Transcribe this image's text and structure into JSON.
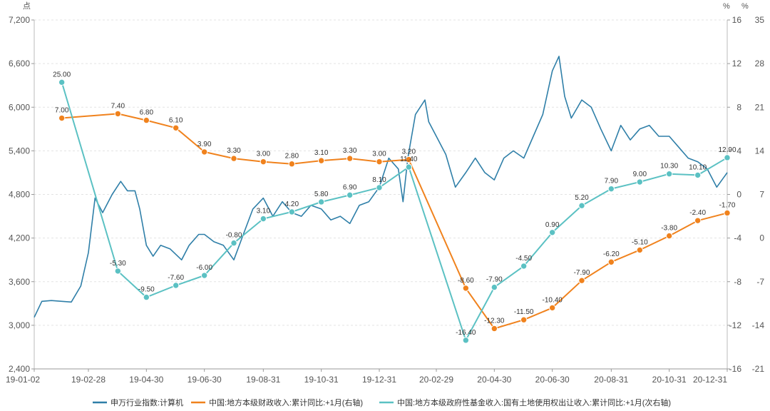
{
  "chart_data": {
    "type": "line",
    "axes": {
      "left": {
        "unit": "点",
        "min": 2400,
        "max": 7200,
        "ticks": [
          "2,400",
          "3,000",
          "3,600",
          "4,200",
          "4,800",
          "5,400",
          "6,000",
          "6,600",
          "7,200"
        ]
      },
      "right1": {
        "unit": "%",
        "min": -16,
        "max": 16,
        "ticks": [
          "-16",
          "-12",
          "-8",
          "-4",
          "0",
          "4",
          "8",
          "12",
          "16"
        ]
      },
      "right2": {
        "unit": "%",
        "min": -21,
        "max": 35,
        "ticks": [
          "-21",
          "-14",
          "-7",
          "0",
          "7",
          "14",
          "21",
          "28",
          "35"
        ]
      },
      "x_ticks": [
        "19-01-02",
        "19-02-28",
        "19-04-30",
        "19-06-30",
        "19-08-31",
        "19-10-31",
        "19-12-31",
        "20-02-29",
        "20-04-30",
        "20-06-30",
        "20-08-31",
        "20-10-31",
        "20-12-31"
      ]
    },
    "grid": true,
    "legend_position": "bottom",
    "series": [
      {
        "name": "申万行业指数:计算机",
        "axis": "left",
        "color": "#2f7fa8",
        "points": [
          [
            "19-01-02",
            3110
          ],
          [
            "19-01-10",
            3330
          ],
          [
            "19-01-20",
            3340
          ],
          [
            "19-01-31",
            3330
          ],
          [
            "19-02-10",
            3320
          ],
          [
            "19-02-20",
            3540
          ],
          [
            "19-02-28",
            4000
          ],
          [
            "19-03-07",
            4750
          ],
          [
            "19-03-15",
            4550
          ],
          [
            "19-03-25",
            4800
          ],
          [
            "19-04-03",
            4980
          ],
          [
            "19-04-10",
            4850
          ],
          [
            "19-04-18",
            4850
          ],
          [
            "19-04-23",
            4600
          ],
          [
            "19-04-30",
            4100
          ],
          [
            "19-05-07",
            3950
          ],
          [
            "19-05-15",
            4100
          ],
          [
            "19-05-25",
            4050
          ],
          [
            "19-06-06",
            3900
          ],
          [
            "19-06-14",
            4100
          ],
          [
            "19-06-24",
            4250
          ],
          [
            "19-06-30",
            4250
          ],
          [
            "19-07-10",
            4150
          ],
          [
            "19-07-20",
            4100
          ],
          [
            "19-07-31",
            3900
          ],
          [
            "19-08-10",
            4250
          ],
          [
            "19-08-20",
            4600
          ],
          [
            "19-08-31",
            4750
          ],
          [
            "19-09-10",
            4500
          ],
          [
            "19-09-20",
            4700
          ],
          [
            "19-09-30",
            4550
          ],
          [
            "19-10-10",
            4500
          ],
          [
            "19-10-20",
            4650
          ],
          [
            "19-10-31",
            4600
          ],
          [
            "19-11-10",
            4450
          ],
          [
            "19-11-20",
            4500
          ],
          [
            "19-11-30",
            4400
          ],
          [
            "19-12-10",
            4650
          ],
          [
            "19-12-20",
            4700
          ],
          [
            "19-12-31",
            4900
          ],
          [
            "20-01-10",
            5300
          ],
          [
            "20-01-20",
            5150
          ],
          [
            "20-01-25",
            4700
          ],
          [
            "20-01-30",
            5300
          ],
          [
            "20-02-07",
            5900
          ],
          [
            "20-02-17",
            6100
          ],
          [
            "20-02-21",
            5800
          ],
          [
            "20-02-29",
            5600
          ],
          [
            "20-03-10",
            5350
          ],
          [
            "20-03-20",
            4900
          ],
          [
            "20-03-31",
            5100
          ],
          [
            "20-04-10",
            5300
          ],
          [
            "20-04-20",
            5100
          ],
          [
            "20-04-30",
            5000
          ],
          [
            "20-05-10",
            5300
          ],
          [
            "20-05-20",
            5400
          ],
          [
            "20-05-31",
            5300
          ],
          [
            "20-06-10",
            5600
          ],
          [
            "20-06-20",
            5900
          ],
          [
            "20-06-30",
            6500
          ],
          [
            "20-07-07",
            6700
          ],
          [
            "20-07-13",
            6150
          ],
          [
            "20-07-20",
            5850
          ],
          [
            "20-07-31",
            6100
          ],
          [
            "20-08-10",
            6000
          ],
          [
            "20-08-20",
            5700
          ],
          [
            "20-08-31",
            5400
          ],
          [
            "20-09-10",
            5750
          ],
          [
            "20-09-20",
            5550
          ],
          [
            "20-09-30",
            5700
          ],
          [
            "20-10-10",
            5750
          ],
          [
            "20-10-20",
            5600
          ],
          [
            "20-10-31",
            5600
          ],
          [
            "20-11-10",
            5450
          ],
          [
            "20-11-20",
            5300
          ],
          [
            "20-11-30",
            5250
          ],
          [
            "20-12-10",
            5150
          ],
          [
            "20-12-20",
            4900
          ],
          [
            "20-12-31",
            5100
          ]
        ]
      },
      {
        "name": "中国:地方本级财政收入:累计同比:+1月(右轴)",
        "axis": "right1",
        "color": "#f0821d",
        "points": [
          [
            "19-01-31",
            7.0
          ],
          [
            "19-03-31",
            7.4
          ],
          [
            "19-04-30",
            6.8
          ],
          [
            "19-05-31",
            6.1
          ],
          [
            "19-06-30",
            3.9
          ],
          [
            "19-07-31",
            3.3
          ],
          [
            "19-08-31",
            3.0
          ],
          [
            "19-09-30",
            2.8
          ],
          [
            "19-10-31",
            3.1
          ],
          [
            "19-11-30",
            3.3
          ],
          [
            "19-12-31",
            3.0
          ],
          [
            "20-01-31",
            3.2
          ],
          [
            "20-03-31",
            -8.6
          ],
          [
            "20-04-30",
            -12.3
          ],
          [
            "20-05-31",
            -11.5
          ],
          [
            "20-06-30",
            -10.4
          ],
          [
            "20-07-31",
            -7.9
          ],
          [
            "20-08-31",
            -6.2
          ],
          [
            "20-09-30",
            -5.1
          ],
          [
            "20-10-31",
            -3.8
          ],
          [
            "20-11-30",
            -2.4
          ],
          [
            "20-12-31",
            -1.7
          ]
        ],
        "labels": [
          "7.00",
          "7.40",
          "6.80",
          "6.10",
          "3.90",
          "3.30",
          "3.00",
          "2.80",
          "3.10",
          "3.30",
          "3.00",
          "3.20",
          "-8.60",
          "-12.30",
          "-11.50",
          "-10.40",
          "-7.90",
          "-6.20",
          "-5.10",
          "-3.80",
          "-2.40",
          "-1.70"
        ]
      },
      {
        "name": "中国:地方本级政府性基金收入:国有土地使用权出让收入:累计同比:+1月(次右轴)",
        "axis": "right2",
        "color": "#5bc1c3",
        "points": [
          [
            "19-01-31",
            25.0
          ],
          [
            "19-03-31",
            -5.3
          ],
          [
            "19-04-30",
            -9.5
          ],
          [
            "19-05-31",
            -7.6
          ],
          [
            "19-06-30",
            -6.0
          ],
          [
            "19-07-31",
            -0.8
          ],
          [
            "19-08-31",
            3.1
          ],
          [
            "19-09-30",
            4.2
          ],
          [
            "19-10-31",
            5.8
          ],
          [
            "19-11-30",
            6.9
          ],
          [
            "19-12-31",
            8.1
          ],
          [
            "20-01-31",
            11.4
          ],
          [
            "20-03-31",
            -16.4
          ],
          [
            "20-04-30",
            -7.9
          ],
          [
            "20-05-31",
            -4.5
          ],
          [
            "20-06-30",
            0.9
          ],
          [
            "20-07-31",
            5.2
          ],
          [
            "20-08-31",
            7.9
          ],
          [
            "20-09-30",
            9.0
          ],
          [
            "20-10-31",
            10.3
          ],
          [
            "20-11-30",
            10.1
          ],
          [
            "20-12-31",
            12.9
          ]
        ],
        "labels": [
          "25.00",
          "-5.30",
          "-9.50",
          "-7.60",
          "-6.00",
          "-0.80",
          "3.10",
          "4.20",
          "5.80",
          "6.90",
          "8.10",
          "11.40",
          "-16.40",
          "-7.90",
          "-4.50",
          "0.90",
          "5.20",
          "7.90",
          "9.00",
          "10.30",
          "10.10",
          "12.90"
        ]
      }
    ]
  }
}
